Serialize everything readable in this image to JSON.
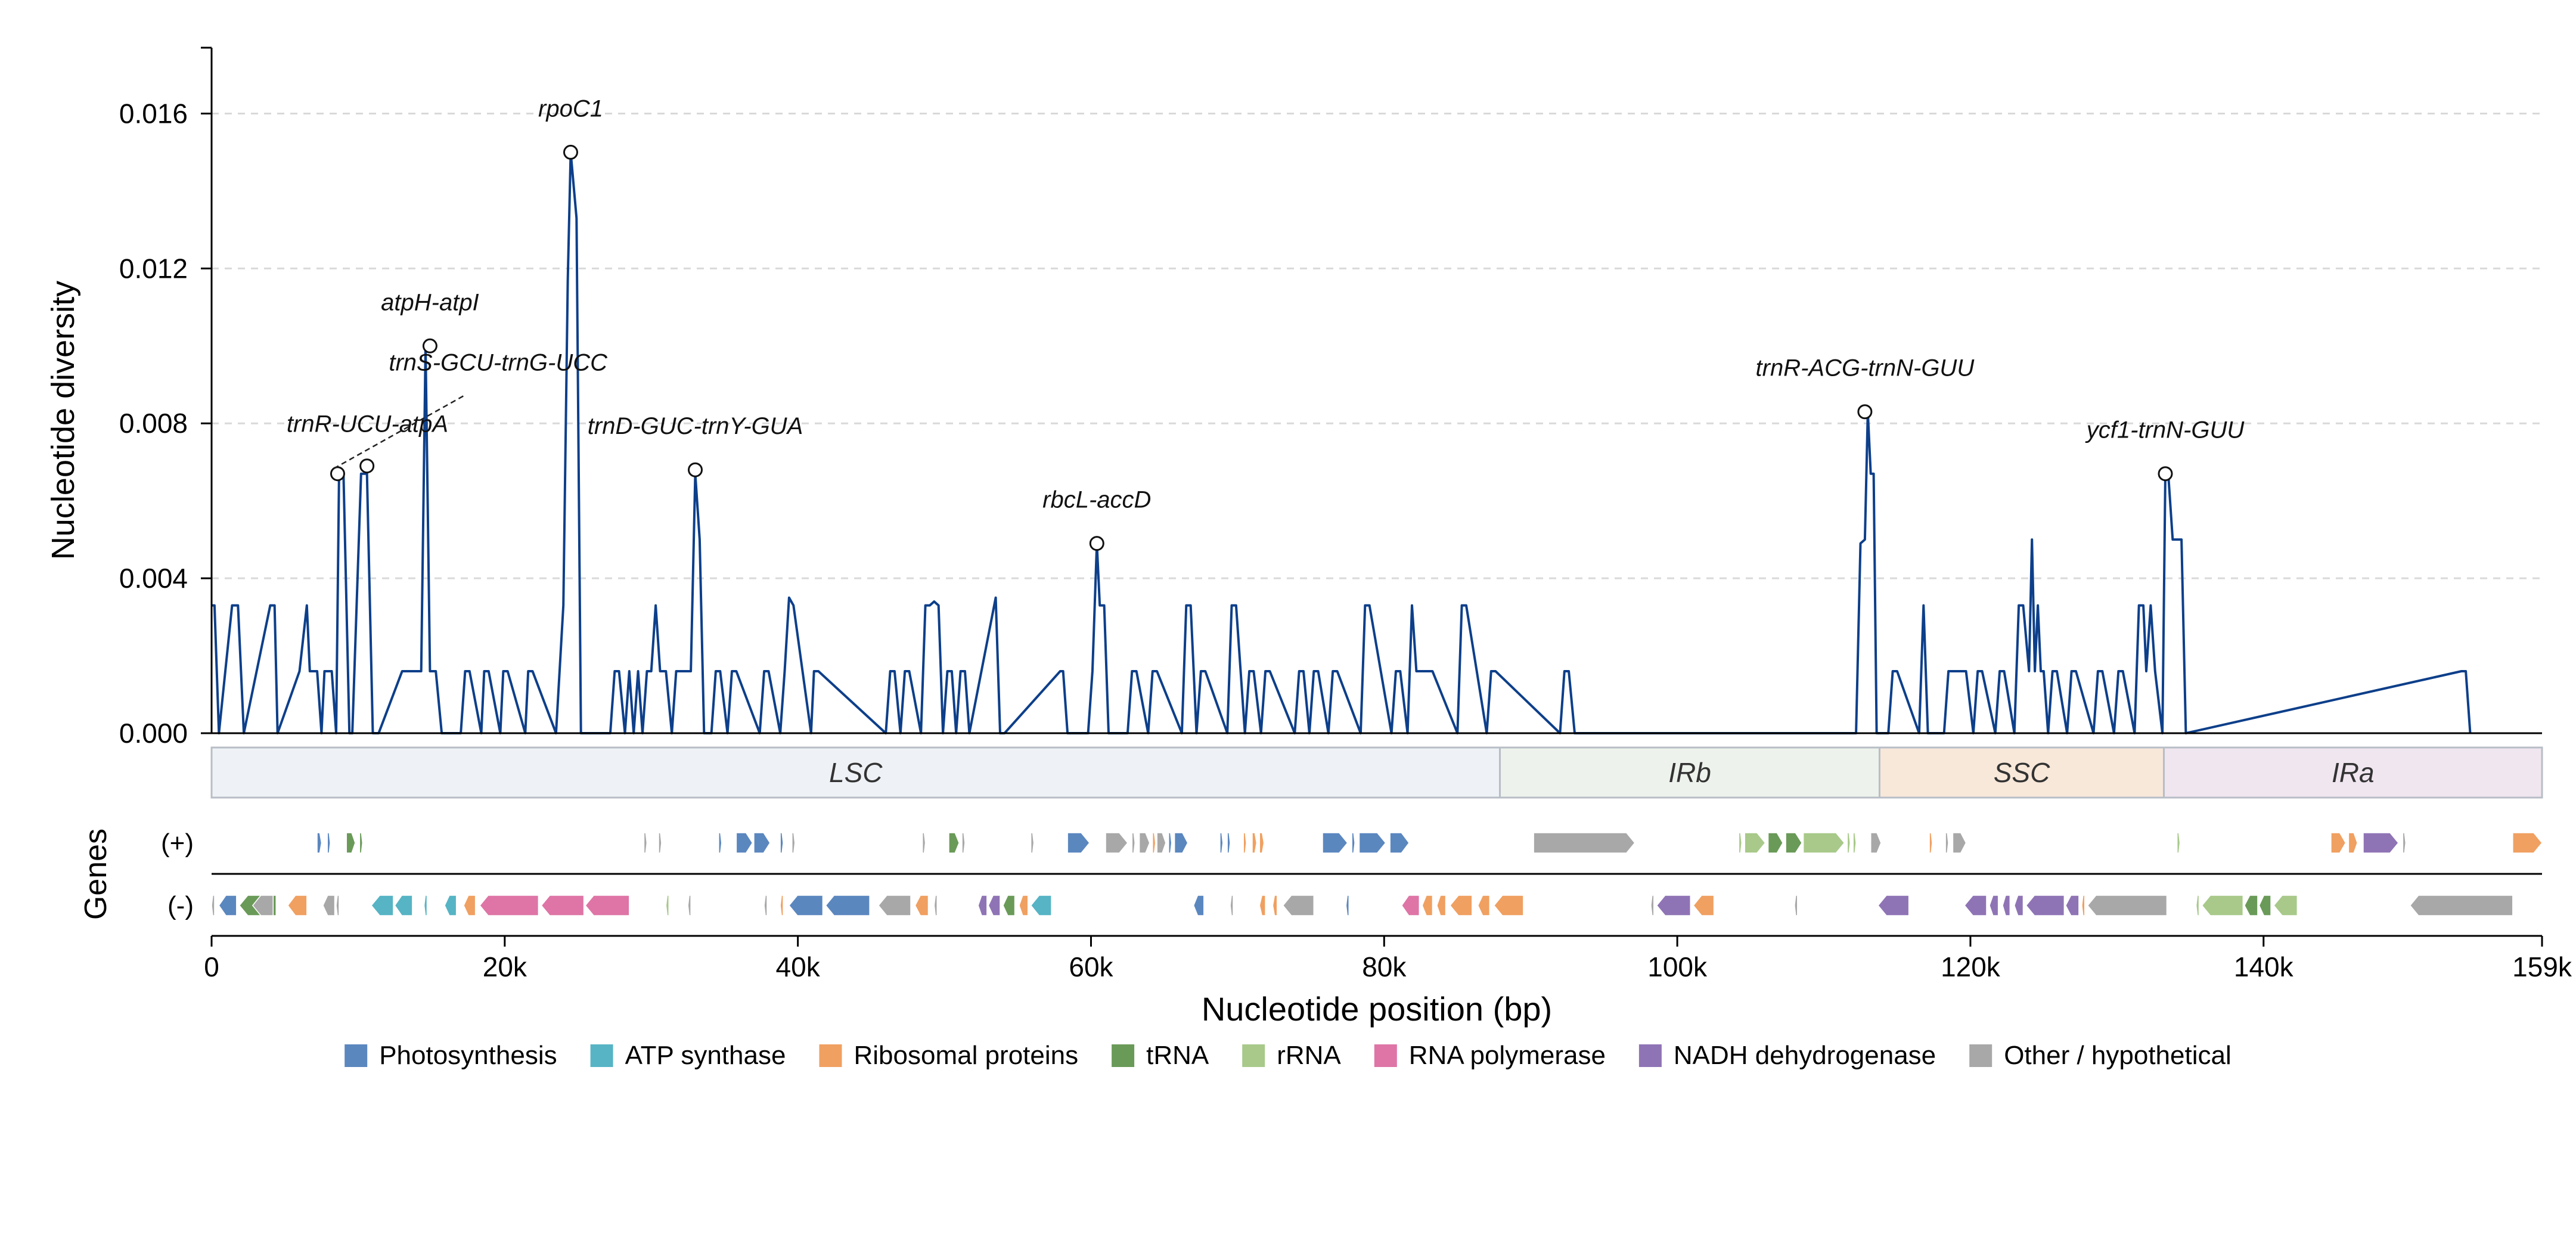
{
  "chart_data": {
    "type": "line",
    "xlabel": "Nucleotide position (bp)",
    "ylabel": "Nucleotide diversity",
    "genes_label": "Genes",
    "strand_labels": [
      "(+)",
      "(-)"
    ],
    "xlim": [
      0,
      159000
    ],
    "ylim": [
      0,
      0.0177
    ],
    "x_ticks": [
      0,
      20000,
      40000,
      60000,
      80000,
      100000,
      120000,
      140000,
      159000
    ],
    "x_tick_labels": [
      "0",
      "20k",
      "40k",
      "60k",
      "80k",
      "100k",
      "120k",
      "140k",
      "159k"
    ],
    "y_ticks": [
      0,
      0.004,
      0.008,
      0.012,
      0.016
    ],
    "y_tick_labels": [
      "0.000",
      "0.004",
      "0.008",
      "0.012",
      "0.016"
    ],
    "grid": "horizontal dashed",
    "series": [
      {
        "color": "#0d3f8a",
        "x": [
          0,
          200,
          500,
          1400,
          1800,
          2200,
          4000,
          4300,
          4500,
          6000,
          6500,
          6700,
          7200,
          7500,
          7700,
          8200,
          8500,
          8700,
          9000,
          9400,
          9600,
          10200,
          10600,
          11000,
          11400,
          13000,
          13300,
          13600,
          14300,
          14600,
          14900,
          15300,
          15700,
          17000,
          17300,
          17600,
          18400,
          18600,
          18900,
          19700,
          19900,
          20200,
          21400,
          21600,
          21900,
          23500,
          24000,
          24300,
          24500,
          24900,
          25200,
          27200,
          27500,
          27800,
          28200,
          28500,
          28800,
          29100,
          29400,
          29700,
          30000,
          30300,
          30600,
          31000,
          31400,
          31700,
          32000,
          32700,
          33000,
          33300,
          33600,
          34100,
          34400,
          34700,
          35200,
          35500,
          35800,
          37400,
          37700,
          38000,
          38800,
          39100,
          39400,
          39700,
          40900,
          41100,
          41400,
          46000,
          46300,
          46600,
          47000,
          47300,
          47600,
          48400,
          48700,
          49000,
          49300,
          49600,
          49900,
          50200,
          50500,
          50800,
          51100,
          51400,
          51700,
          53500,
          53800,
          54100,
          57900,
          58100,
          58400,
          59800,
          60100,
          60400,
          60600,
          60900,
          61200,
          62500,
          62800,
          63100,
          63900,
          64200,
          64500,
          66200,
          66500,
          66800,
          67200,
          67500,
          67800,
          69300,
          69600,
          69900,
          70500,
          70800,
          71100,
          71600,
          71900,
          72200,
          73900,
          74200,
          74500,
          74900,
          75200,
          75500,
          76200,
          76500,
          76800,
          78400,
          78700,
          79000,
          80500,
          80800,
          81100,
          81600,
          81900,
          82200,
          82700,
          83000,
          83300,
          85000,
          85300,
          85600,
          87000,
          87300,
          87600,
          92000,
          92300,
          92600,
          93000,
          112200,
          112500,
          112800,
          113000,
          113200,
          113400,
          113600,
          114400,
          114700,
          115000,
          116500,
          116800,
          117100,
          118200,
          118500,
          118800,
          119100,
          119400,
          119700,
          120200,
          120500,
          120800,
          121700,
          122000,
          122300,
          123000,
          123300,
          123600,
          124000,
          124200,
          124400,
          124600,
          124800,
          125000,
          125300,
          125600,
          125900,
          126600,
          126900,
          127200,
          128400,
          128700,
          129000,
          129800,
          130100,
          130400,
          131200,
          131500,
          131800,
          132000,
          132300,
          132600,
          133100,
          133300,
          133500,
          133800,
          134400,
          134700,
          153500,
          153800,
          154100
        ],
        "y": [
          0.0033,
          0.0033,
          0,
          0.0033,
          0.0033,
          0,
          0.0033,
          0.0033,
          0,
          0.0016,
          0.0033,
          0.0016,
          0.0016,
          0,
          0.0016,
          0.0016,
          0,
          0.0067,
          0.0067,
          0,
          0,
          0.0067,
          0.0067,
          0,
          0,
          0.0016,
          0.0016,
          0.0016,
          0.0016,
          0.01,
          0.0016,
          0.0016,
          0,
          0,
          0.0016,
          0.0016,
          0,
          0.0016,
          0.0016,
          0,
          0.0016,
          0.0016,
          0,
          0.0016,
          0.0016,
          0,
          0.0033,
          0.0117,
          0.015,
          0.0133,
          0,
          0,
          0.0016,
          0.0016,
          0,
          0.0016,
          0,
          0.0016,
          0,
          0.0016,
          0.0016,
          0.0033,
          0.0016,
          0.0016,
          0,
          0.0016,
          0.0016,
          0.0016,
          0.0067,
          0.005,
          0,
          0,
          0.0016,
          0.0016,
          0,
          0.0016,
          0.0016,
          0,
          0.0016,
          0.0016,
          0,
          0.0016,
          0.0035,
          0.0033,
          0,
          0.0016,
          0.0016,
          0,
          0.0016,
          0.0016,
          0,
          0.0016,
          0.0016,
          0,
          0.0033,
          0.0033,
          0.0034,
          0.0033,
          0,
          0.0016,
          0.0016,
          0,
          0.0016,
          0.0016,
          0,
          0.0035,
          0,
          0,
          0.0016,
          0.0016,
          0,
          0,
          0.0016,
          0.0049,
          0.0033,
          0.0033,
          0,
          0,
          0.0016,
          0.0016,
          0,
          0.0016,
          0.0016,
          0,
          0.0033,
          0.0033,
          0,
          0.0016,
          0.0016,
          0,
          0.0033,
          0.0033,
          0,
          0.0016,
          0.0016,
          0,
          0.0016,
          0.0016,
          0,
          0.0016,
          0.0016,
          0,
          0.0016,
          0.0016,
          0,
          0.0016,
          0.0016,
          0,
          0.0033,
          0.0033,
          0,
          0.0016,
          0.0016,
          0,
          0.0033,
          0.0016,
          0.0016,
          0.0016,
          0.0016,
          0,
          0.0033,
          0.0033,
          0,
          0.0016,
          0.0016,
          0,
          0.0016,
          0.0016,
          0,
          0,
          0.0049,
          0.005,
          0.0083,
          0.0067,
          0.0067,
          0,
          0,
          0.0016,
          0.0016,
          0,
          0.0033,
          0,
          0,
          0.0016,
          0.0016,
          0.0016,
          0.0016,
          0.0016,
          0,
          0.0016,
          0.0016,
          0,
          0.0016,
          0.0016,
          0,
          0.0033,
          0.0033,
          0.0016,
          0.005,
          0.0016,
          0.0033,
          0.0016,
          0.0016,
          0,
          0.0016,
          0.0016,
          0,
          0.0016,
          0.0016,
          0,
          0.0016,
          0.0016,
          0,
          0.0016,
          0.0016,
          0,
          0.0033,
          0.0033,
          0.0016,
          0.0033,
          0.0016,
          0,
          0.0067,
          0.0067,
          0.005,
          0.005,
          0,
          0.0016,
          0.0016,
          0
        ]
      }
    ],
    "annotations": [
      {
        "label": "trnR-UCU-atpA",
        "x": 8600,
        "y": 0.0067
      },
      {
        "label": "trnS-GCU-trnG-UCC",
        "x": 10600,
        "y": 0.0069
      },
      {
        "label": "atpH-atpI",
        "x": 14900,
        "y": 0.01
      },
      {
        "label": "rpoC1",
        "x": 24500,
        "y": 0.015
      },
      {
        "label": "trnD-GUC-trnY-GUA",
        "x": 33000,
        "y": 0.0068
      },
      {
        "label": "rbcL-accD",
        "x": 60400,
        "y": 0.0049
      },
      {
        "label": "trnR-ACG-trnN-GUU",
        "x": 112800,
        "y": 0.0083
      },
      {
        "label": "ycf1-trnN-GUU",
        "x": 133300,
        "y": 0.0067
      }
    ],
    "regions": [
      {
        "name": "LSC",
        "start": 0,
        "end": 87900,
        "color": "#eef2f6"
      },
      {
        "name": "IRb",
        "start": 87900,
        "end": 113800,
        "color": "#edf3ec"
      },
      {
        "name": "SSC",
        "start": 113800,
        "end": 133200,
        "color": "#f8e8da"
      },
      {
        "name": "IRa",
        "start": 133200,
        "end": 159000,
        "color": "#f0e6f0"
      }
    ],
    "legend": [
      {
        "name": "Photosynthesis",
        "color": "#5b87bf"
      },
      {
        "name": "ATP synthase",
        "color": "#56b4c4"
      },
      {
        "name": "Ribosomal proteins",
        "color": "#f0a061"
      },
      {
        "name": "tRNA",
        "color": "#6a9a58"
      },
      {
        "name": "rRNA",
        "color": "#a8c98a"
      },
      {
        "name": "RNA polymerase",
        "color": "#de75a6"
      },
      {
        "name": "NADH dehydrogenase",
        "color": "#8f74b5"
      },
      {
        "name": "Other / hypothetical",
        "color": "#a8a8a8"
      }
    ],
    "genes_plus": [
      {
        "s": 7200,
        "e": 7500,
        "c": "#5b87bf"
      },
      {
        "s": 7900,
        "e": 8100,
        "c": "#5b87bf"
      },
      {
        "s": 9200,
        "e": 9800,
        "c": "#6a9a58"
      },
      {
        "s": 10100,
        "e": 10300,
        "c": "#6a9a58"
      },
      {
        "s": 29500,
        "e": 29700,
        "c": "#a8a8a8"
      },
      {
        "s": 30500,
        "e": 30700,
        "c": "#a8a8a8"
      },
      {
        "s": 34600,
        "e": 34800,
        "c": "#5b87bf"
      },
      {
        "s": 35800,
        "e": 36900,
        "c": "#5b87bf"
      },
      {
        "s": 37000,
        "e": 38100,
        "c": "#5b87bf"
      },
      {
        "s": 38800,
        "e": 39000,
        "c": "#5b87bf"
      },
      {
        "s": 39600,
        "e": 39800,
        "c": "#a8a8a8"
      },
      {
        "s": 48500,
        "e": 48700,
        "c": "#a8a8a8"
      },
      {
        "s": 50300,
        "e": 51000,
        "c": "#6a9a58"
      },
      {
        "s": 51200,
        "e": 51400,
        "c": "#a8a8a8"
      },
      {
        "s": 55900,
        "e": 56100,
        "c": "#a8a8a8"
      },
      {
        "s": 58400,
        "e": 59900,
        "c": "#5b87bf"
      },
      {
        "s": 61000,
        "e": 62500,
        "c": "#a8a8a8"
      },
      {
        "s": 62800,
        "e": 63000,
        "c": "#a8a8a8"
      },
      {
        "s": 63300,
        "e": 64000,
        "c": "#a8a8a8"
      },
      {
        "s": 64200,
        "e": 64400,
        "c": "#f0a061"
      },
      {
        "s": 64500,
        "e": 65100,
        "c": "#a8a8a8"
      },
      {
        "s": 65300,
        "e": 65500,
        "c": "#5b87bf"
      },
      {
        "s": 65700,
        "e": 66600,
        "c": "#5b87bf"
      },
      {
        "s": 68800,
        "e": 69000,
        "c": "#5b87bf"
      },
      {
        "s": 69300,
        "e": 69500,
        "c": "#5b87bf"
      },
      {
        "s": 70400,
        "e": 70600,
        "c": "#f0a061"
      },
      {
        "s": 71000,
        "e": 71300,
        "c": "#f0a061"
      },
      {
        "s": 71500,
        "e": 71800,
        "c": "#f0a061"
      },
      {
        "s": 75800,
        "e": 77500,
        "c": "#5b87bf"
      },
      {
        "s": 77800,
        "e": 78000,
        "c": "#5b87bf"
      },
      {
        "s": 78300,
        "e": 80100,
        "c": "#5b87bf"
      },
      {
        "s": 80400,
        "e": 81700,
        "c": "#5b87bf"
      },
      {
        "s": 90200,
        "e": 97100,
        "c": "#a8a8a8"
      },
      {
        "s": 104200,
        "e": 104400,
        "c": "#a8c98a"
      },
      {
        "s": 104600,
        "e": 106000,
        "c": "#a8c98a"
      },
      {
        "s": 106200,
        "e": 107200,
        "c": "#6a9a58"
      },
      {
        "s": 107400,
        "e": 108500,
        "c": "#6a9a58"
      },
      {
        "s": 108600,
        "e": 111400,
        "c": "#a8c98a"
      },
      {
        "s": 111600,
        "e": 111800,
        "c": "#a8c98a"
      },
      {
        "s": 112000,
        "e": 112200,
        "c": "#a8c98a"
      },
      {
        "s": 113200,
        "e": 113900,
        "c": "#a8a8a8"
      },
      {
        "s": 117200,
        "e": 117400,
        "c": "#f0a061"
      },
      {
        "s": 118300,
        "e": 118500,
        "c": "#a8a8a8"
      },
      {
        "s": 118800,
        "e": 119700,
        "c": "#a8a8a8"
      },
      {
        "s": 134100,
        "e": 134300,
        "c": "#a8c98a"
      },
      {
        "s": 144600,
        "e": 145600,
        "c": "#f0a061"
      },
      {
        "s": 145800,
        "e": 146400,
        "c": "#f0a061"
      },
      {
        "s": 146800,
        "e": 149200,
        "c": "#8f74b5"
      },
      {
        "s": 149500,
        "e": 149700,
        "c": "#a8a8a8"
      },
      {
        "s": 157000,
        "e": 159000,
        "c": "#f0a061"
      }
    ],
    "genes_minus": [
      {
        "s": 0,
        "e": 200,
        "c": "#a8a8a8"
      },
      {
        "s": 500,
        "e": 1700,
        "c": "#5b87bf"
      },
      {
        "s": 1900,
        "e": 4400,
        "c": "#6a9a58"
      },
      {
        "s": 2800,
        "e": 4200,
        "c": "#a8a8a8"
      },
      {
        "s": 5200,
        "e": 6500,
        "c": "#f0a061"
      },
      {
        "s": 7600,
        "e": 8400,
        "c": "#a8a8a8"
      },
      {
        "s": 8500,
        "e": 8700,
        "c": "#a8a8a8"
      },
      {
        "s": 10900,
        "e": 12400,
        "c": "#56b4c4"
      },
      {
        "s": 12500,
        "e": 13700,
        "c": "#56b4c4"
      },
      {
        "s": 14500,
        "e": 14700,
        "c": "#56b4c4"
      },
      {
        "s": 15900,
        "e": 16700,
        "c": "#56b4c4"
      },
      {
        "s": 17200,
        "e": 18000,
        "c": "#f0a061"
      },
      {
        "s": 18300,
        "e": 22300,
        "c": "#de75a6"
      },
      {
        "s": 22500,
        "e": 25400,
        "c": "#de75a6"
      },
      {
        "s": 25500,
        "e": 28500,
        "c": "#de75a6"
      },
      {
        "s": 31000,
        "e": 31200,
        "c": "#a8c98a"
      },
      {
        "s": 32500,
        "e": 32700,
        "c": "#a8a8a8"
      },
      {
        "s": 37700,
        "e": 37900,
        "c": "#a8a8a8"
      },
      {
        "s": 38800,
        "e": 39000,
        "c": "#f0a061"
      },
      {
        "s": 39400,
        "e": 41700,
        "c": "#5b87bf"
      },
      {
        "s": 41900,
        "e": 44900,
        "c": "#5b87bf"
      },
      {
        "s": 45500,
        "e": 47700,
        "c": "#a8a8a8"
      },
      {
        "s": 48000,
        "e": 48900,
        "c": "#f0a061"
      },
      {
        "s": 49300,
        "e": 49500,
        "c": "#a8a8a8"
      },
      {
        "s": 52300,
        "e": 52900,
        "c": "#8f74b5"
      },
      {
        "s": 53000,
        "e": 53800,
        "c": "#8f74b5"
      },
      {
        "s": 54000,
        "e": 54800,
        "c": "#6a9a58"
      },
      {
        "s": 55100,
        "e": 55700,
        "c": "#f0a061"
      },
      {
        "s": 55900,
        "e": 57300,
        "c": "#56b4c4"
      },
      {
        "s": 67000,
        "e": 67700,
        "c": "#5b87bf"
      },
      {
        "s": 69500,
        "e": 69700,
        "c": "#a8a8a8"
      },
      {
        "s": 71500,
        "e": 71900,
        "c": "#f0a061"
      },
      {
        "s": 72400,
        "e": 72700,
        "c": "#f0a061"
      },
      {
        "s": 73100,
        "e": 75200,
        "c": "#a8a8a8"
      },
      {
        "s": 77400,
        "e": 77600,
        "c": "#5b87bf"
      },
      {
        "s": 81200,
        "e": 82400,
        "c": "#de75a6"
      },
      {
        "s": 82600,
        "e": 83300,
        "c": "#f0a061"
      },
      {
        "s": 83600,
        "e": 84200,
        "c": "#f0a061"
      },
      {
        "s": 84500,
        "e": 86000,
        "c": "#f0a061"
      },
      {
        "s": 86400,
        "e": 87200,
        "c": "#f0a061"
      },
      {
        "s": 87500,
        "e": 89500,
        "c": "#f0a061"
      },
      {
        "s": 98200,
        "e": 98400,
        "c": "#a8a8a8"
      },
      {
        "s": 98600,
        "e": 100900,
        "c": "#8f74b5"
      },
      {
        "s": 101100,
        "e": 102500,
        "c": "#f0a061"
      },
      {
        "s": 108000,
        "e": 108200,
        "c": "#a8a8a8"
      },
      {
        "s": 113700,
        "e": 115800,
        "c": "#8f74b5"
      },
      {
        "s": 119600,
        "e": 121100,
        "c": "#8f74b5"
      },
      {
        "s": 121300,
        "e": 121900,
        "c": "#8f74b5"
      },
      {
        "s": 122200,
        "e": 122700,
        "c": "#8f74b5"
      },
      {
        "s": 123000,
        "e": 123600,
        "c": "#8f74b5"
      },
      {
        "s": 123800,
        "e": 126400,
        "c": "#8f74b5"
      },
      {
        "s": 126500,
        "e": 127400,
        "c": "#8f74b5"
      },
      {
        "s": 127600,
        "e": 127800,
        "c": "#f0a061"
      },
      {
        "s": 128000,
        "e": 133400,
        "c": "#a8a8a8"
      },
      {
        "s": 135400,
        "e": 135600,
        "c": "#a8c98a"
      },
      {
        "s": 135800,
        "e": 138600,
        "c": "#a8c98a"
      },
      {
        "s": 138700,
        "e": 139600,
        "c": "#6a9a58"
      },
      {
        "s": 139700,
        "e": 140500,
        "c": "#6a9a58"
      },
      {
        "s": 140700,
        "e": 142300,
        "c": "#a8c98a"
      },
      {
        "s": 150000,
        "e": 157000,
        "c": "#a8a8a8"
      }
    ]
  }
}
